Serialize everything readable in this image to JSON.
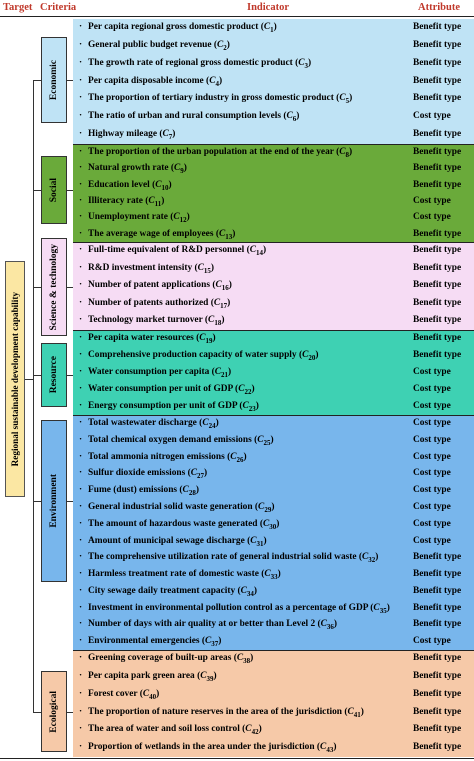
{
  "header": {
    "target": "Target",
    "criteria": "Criteria",
    "indicator": "Indicator",
    "attribute": "Attribute"
  },
  "target_label": "Regional sustainable development capability",
  "groups": [
    {
      "criterion": "Economic",
      "color": "#bfe3f5",
      "rows": [
        {
          "text": "Per capita regional gross domestic product (C1)",
          "attr": "Benefit type"
        },
        {
          "text": "General public budget revenue (C2)",
          "attr": "Benefit type"
        },
        {
          "text": "The growth rate of regional gross domestic product (C3)",
          "attr": "Benefit type"
        },
        {
          "text": "Per capita disposable income (C4)",
          "attr": "Benefit type"
        },
        {
          "text": "The proportion of tertiary industry in gross domestic product (C5)",
          "attr": "Benefit type"
        },
        {
          "text": "The ratio of urban and rural consumption levels (C6)",
          "attr": "Cost type"
        },
        {
          "text": "Highway mileage (C7)",
          "attr": "Benefit type"
        }
      ]
    },
    {
      "criterion": "Social",
      "color": "#6aaa3a",
      "rows": [
        {
          "text": "The proportion of the urban population at the end of the year (C8)",
          "attr": "Benefit type"
        },
        {
          "text": "Natural growth rate (C9)",
          "attr": "Benefit type"
        },
        {
          "text": "Education level (C10)",
          "attr": "Benefit type"
        },
        {
          "text": "Illiteracy rate (C11)",
          "attr": "Cost type"
        },
        {
          "text": "Unemployment rate (C12)",
          "attr": "Cost type"
        },
        {
          "text": "The average wage of employees (C13)",
          "attr": "Benefit type"
        }
      ]
    },
    {
      "criterion": "Science & technology",
      "color": "#f6dcf4",
      "rows": [
        {
          "text": "Full-time equivalent of R&D personnel (C14)",
          "attr": "Benefit type"
        },
        {
          "text": "R&D investment intensity (C15)",
          "attr": "Benefit type"
        },
        {
          "text": "Number of patent applications (C16)",
          "attr": "Benefit type"
        },
        {
          "text": "Number of patents authorized (C17)",
          "attr": "Benefit type"
        },
        {
          "text": "Technology market turnover (C18)",
          "attr": "Benefit type"
        }
      ]
    },
    {
      "criterion": "Resource",
      "color": "#3ed1b3",
      "rows": [
        {
          "text": "Per capita water resources (C19)",
          "attr": "Benefit type"
        },
        {
          "text": "Comprehensive production capacity of water supply (C20)",
          "attr": "Benefit type"
        },
        {
          "text": "Water consumption per capita (C21)",
          "attr": "Cost type"
        },
        {
          "text": "Water consumption per unit of GDP (C22)",
          "attr": "Cost type"
        },
        {
          "text": "Energy consumption per unit of GDP (C23)",
          "attr": "Cost type"
        }
      ]
    },
    {
      "criterion": "Environment",
      "color": "#78b6ec",
      "rows": [
        {
          "text": "Total wastewater discharge (C24)",
          "attr": "Cost type"
        },
        {
          "text": "Total chemical oxygen demand emissions (C25)",
          "attr": "Cost type"
        },
        {
          "text": "Total ammonia nitrogen emissions (C26)",
          "attr": "Cost type"
        },
        {
          "text": "Sulfur dioxide emissions (C27)",
          "attr": "Cost type"
        },
        {
          "text": "Fume (dust) emissions (C28)",
          "attr": "Cost type"
        },
        {
          "text": "General industrial solid waste generation (C29)",
          "attr": "Cost type"
        },
        {
          "text": "The amount of hazardous waste generated (C30)",
          "attr": "Cost type"
        },
        {
          "text": "Amount of municipal sewage discharge (C31)",
          "attr": "Cost type"
        },
        {
          "text": "The comprehensive utilization rate of general industrial solid waste (C32)",
          "attr": "Benefit type"
        },
        {
          "text": "Harmless treatment rate of domestic waste (C33)",
          "attr": "Benefit type"
        },
        {
          "text": "City sewage daily treatment capacity (C34)",
          "attr": "Benefit type"
        },
        {
          "text": "Investment in environmental pollution control as a percentage of GDP (C35)",
          "attr": "Benefit type"
        },
        {
          "text": "Number of days with air quality at or better than Level 2 (C36)",
          "attr": "Benefit type"
        },
        {
          "text": "Environmental emergencies (C37)",
          "attr": "Cost type"
        }
      ]
    },
    {
      "criterion": "Ecological",
      "color": "#f6c9a8",
      "rows": [
        {
          "text": "Greening coverage of built-up areas (C38)",
          "attr": "Benefit type"
        },
        {
          "text": "Per capita park green area (C39)",
          "attr": "Benefit type"
        },
        {
          "text": "Forest cover (C40)",
          "attr": "Benefit type"
        },
        {
          "text": "The proportion of nature reserves in the area of the jurisdiction (C41)",
          "attr": "Benefit type"
        },
        {
          "text": "The area of water and soil loss control (C42)",
          "attr": "Benefit type"
        },
        {
          "text": "Proportion of wetlands in the area under the jurisdiction (C43)",
          "attr": "Benefit type"
        }
      ]
    }
  ]
}
